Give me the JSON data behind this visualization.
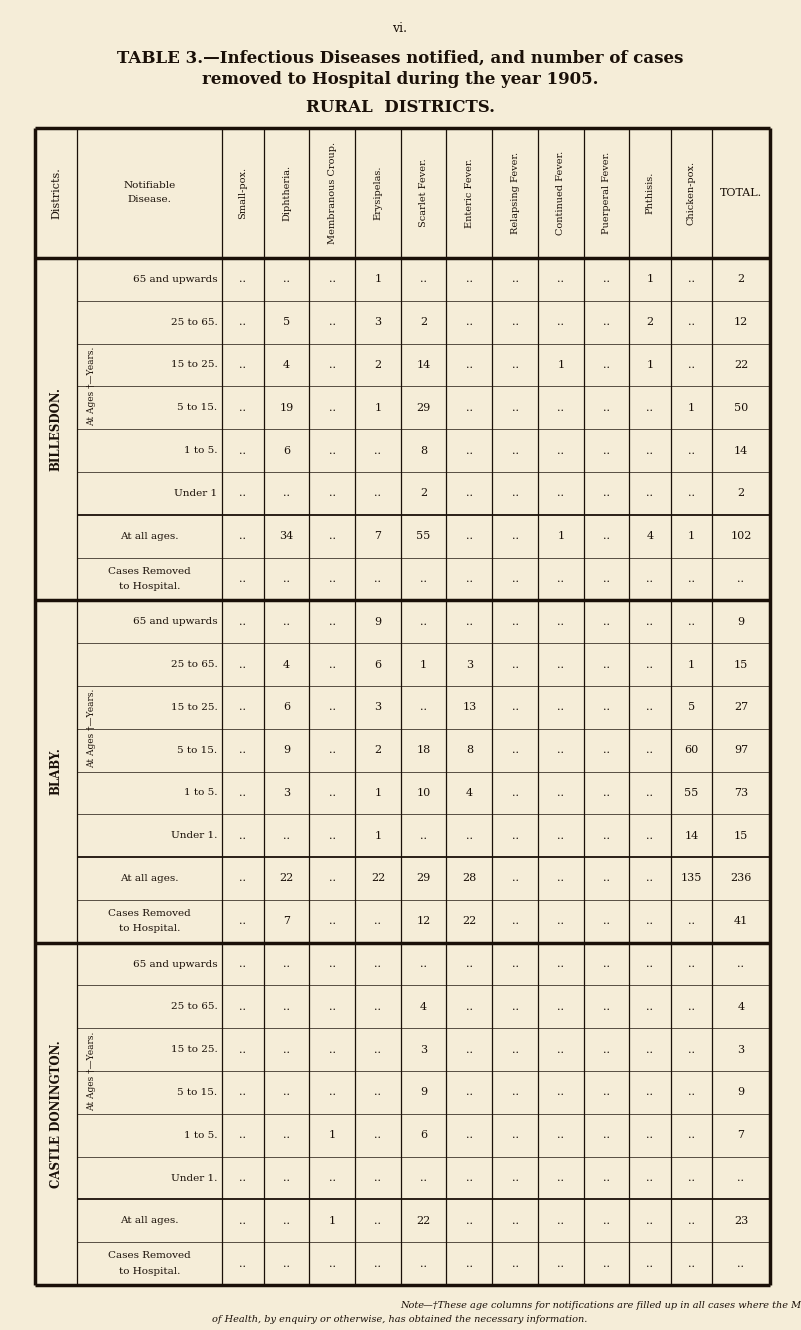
{
  "page_label": "vi.",
  "title_line1": "TABLE 3.—Infectious Diseases notified, and number of cases",
  "title_line2": "removed to Hospital during the year 1905.",
  "subtitle": "RURAL  DISTRICTS.",
  "bg_color": "#f5edd8",
  "text_color": "#1a1008",
  "col_headers": [
    "Small-pox.",
    "Diphtheria.",
    "Membranous Croup.",
    "Erysipelas.",
    "Scarlet Fever.",
    "Enteric Fever.",
    "Relapsing Fever.",
    "Continued Fever.",
    "Puerperal Fever.",
    "Phthisis.",
    "Chicken-pox.",
    "TOTAL."
  ],
  "districts": [
    {
      "name": "BILLESDON.",
      "age_rows": [
        {
          "age": "65 and upwards",
          "vals": [
            "..",
            "..",
            "..",
            "1",
            "..",
            "..",
            "..",
            "..",
            "..",
            "1",
            "..",
            "2"
          ]
        },
        {
          "age": "25 to 65.",
          "vals": [
            "..",
            "5",
            "..",
            "3",
            "2",
            "..",
            "..",
            "..",
            "..",
            "2",
            "..",
            "12"
          ]
        },
        {
          "age": "15 to 25.",
          "vals": [
            "..",
            "4",
            "..",
            "2",
            "14",
            "..",
            "..",
            "1",
            "..",
            "1",
            "..",
            "22"
          ]
        },
        {
          "age": "5 to 15.",
          "vals": [
            "..",
            "19",
            "..",
            "1",
            "29",
            "..",
            "..",
            "..",
            "..",
            "..",
            "1",
            "50"
          ]
        },
        {
          "age": "1 to 5.",
          "vals": [
            "..",
            "6",
            "..",
            "..",
            "8",
            "..",
            "..",
            "..",
            "..",
            "..",
            "..",
            "14"
          ]
        },
        {
          "age": "Under 1",
          "vals": [
            "..",
            "..",
            "..",
            "..",
            "2",
            "..",
            "..",
            "..",
            "..",
            "..",
            "..",
            "2"
          ]
        }
      ],
      "all_ages": [
        "..",
        "34",
        "..",
        "7",
        "55",
        "..",
        "..",
        "1",
        "..",
        "4",
        "1",
        "102"
      ],
      "cases_removed": [
        "..",
        "..",
        "..",
        "..",
        "..",
        "..",
        "..",
        "..",
        "..",
        "..",
        "..",
        ".."
      ]
    },
    {
      "name": "BLABY.",
      "age_rows": [
        {
          "age": "65 and upwards",
          "vals": [
            "..",
            "..",
            "..",
            "9",
            "..",
            "..",
            "..",
            "..",
            "..",
            "..",
            "..",
            "9"
          ]
        },
        {
          "age": "25 to 65.",
          "vals": [
            "..",
            "4",
            "..",
            "6",
            "1",
            "3",
            "..",
            "..",
            "..",
            "..",
            "1",
            "15"
          ]
        },
        {
          "age": "15 to 25.",
          "vals": [
            "..",
            "6",
            "..",
            "3",
            "..",
            "13",
            "..",
            "..",
            "..",
            "..",
            "5",
            "27"
          ]
        },
        {
          "age": "5 to 15.",
          "vals": [
            "..",
            "9",
            "..",
            "2",
            "18",
            "8",
            "..",
            "..",
            "..",
            "..",
            "60",
            "97"
          ]
        },
        {
          "age": "1 to 5.",
          "vals": [
            "..",
            "3",
            "..",
            "1",
            "10",
            "4",
            "..",
            "..",
            "..",
            "..",
            "55",
            "73"
          ]
        },
        {
          "age": "Under 1.",
          "vals": [
            "..",
            "..",
            "..",
            "1",
            "..",
            "..",
            "..",
            "..",
            "..",
            "..",
            "14",
            "15"
          ]
        }
      ],
      "all_ages": [
        "..",
        "22",
        "..",
        "22",
        "29",
        "28",
        "..",
        "..",
        "..",
        "..",
        "135",
        "236"
      ],
      "cases_removed": [
        "..",
        "7",
        "..",
        "..",
        "12",
        "22",
        "..",
        "..",
        "..",
        "..",
        "..",
        "41"
      ]
    },
    {
      "name": "CASTLE DONINGTON.",
      "age_rows": [
        {
          "age": "65 and upwards",
          "vals": [
            "..",
            "..",
            "..",
            "..",
            "..",
            "..",
            "..",
            "..",
            "..",
            "..",
            "..",
            ".."
          ]
        },
        {
          "age": "25 to 65.",
          "vals": [
            "..",
            "..",
            "..",
            "..",
            "4",
            "..",
            "..",
            "..",
            "..",
            "..",
            "..",
            "4"
          ]
        },
        {
          "age": "15 to 25.",
          "vals": [
            "..",
            "..",
            "..",
            "..",
            "3",
            "..",
            "..",
            "..",
            "..",
            "..",
            "..",
            "3"
          ]
        },
        {
          "age": "5 to 15.",
          "vals": [
            "..",
            "..",
            "..",
            "..",
            "9",
            "..",
            "..",
            "..",
            "..",
            "..",
            "..",
            "9"
          ]
        },
        {
          "age": "1 to 5.",
          "vals": [
            "..",
            "..",
            "1",
            "..",
            "6",
            "..",
            "..",
            "..",
            "..",
            "..",
            "..",
            "7"
          ]
        },
        {
          "age": "Under 1.",
          "vals": [
            "..",
            "..",
            "..",
            "..",
            "..",
            "..",
            "..",
            "..",
            "..",
            "..",
            "..",
            ".."
          ]
        }
      ],
      "all_ages": [
        "..",
        "..",
        "1",
        "..",
        "22",
        "..",
        "..",
        "..",
        "..",
        "..",
        "..",
        "23"
      ],
      "cases_removed": [
        "..",
        "..",
        "..",
        "..",
        "..",
        "..",
        "..",
        "..",
        "..",
        "..",
        "..",
        ".."
      ]
    }
  ],
  "footnote_italic": "Note",
  "footnote_rest": "—†These age columns for notifications are filled up in all cases where the Medical Officer\nof Health, by enquiry or otherwise, has obtained the necessary information."
}
